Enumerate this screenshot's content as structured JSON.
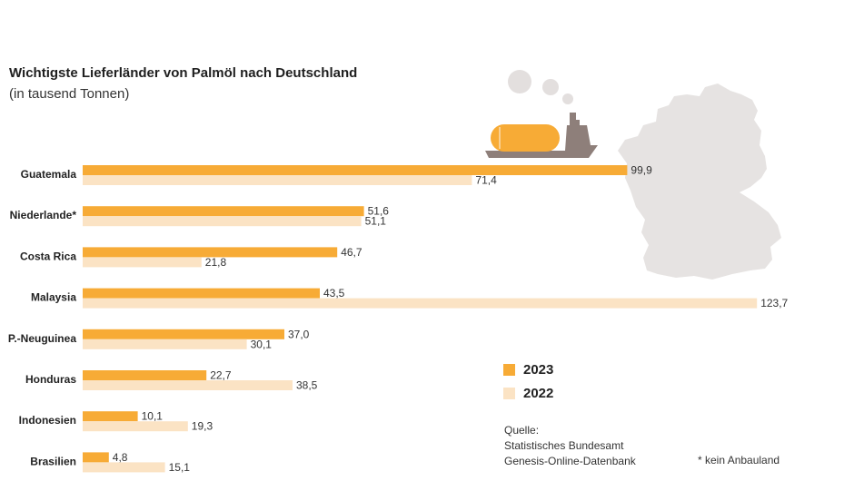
{
  "header": {
    "title": "Wichtigste Lieferländer von Palmöl nach Deutschland",
    "subtitle": "(in tausend Tonnen)"
  },
  "colors": {
    "series_2023": "#f7ab36",
    "series_2022": "#fbe3c4",
    "map": "#e6e3e2",
    "ship": "#8e7f7a",
    "smoke": "#e3dfde",
    "tank": "#f7ab36"
  },
  "chart_data": {
    "type": "bar",
    "orientation": "horizontal",
    "categories": [
      "Guatemala",
      "Niederlande*",
      "Costa Rica",
      "Malaysia",
      "P.-Neuguinea",
      "Honduras",
      "Indonesien",
      "Brasilien"
    ],
    "series": [
      {
        "name": "2023",
        "values": [
          99.9,
          51.6,
          46.7,
          43.5,
          37.0,
          22.7,
          10.1,
          4.8
        ],
        "labels": [
          "99,9",
          "51,6",
          "46,7",
          "43,5",
          "37,0",
          "22,7",
          "10,1",
          "4,8"
        ]
      },
      {
        "name": "2022",
        "values": [
          71.4,
          51.1,
          21.8,
          123.7,
          30.1,
          38.5,
          19.3,
          15.1
        ],
        "labels": [
          "71,4",
          "51,1",
          "21,8",
          "123,7",
          "30,1",
          "38,5",
          "19,3",
          "15,1"
        ]
      }
    ],
    "legend": [
      "2023",
      "2022"
    ],
    "legend_position": "right",
    "grid": false
  },
  "source": {
    "line1": "Quelle:",
    "line2": "Statistisches Bundesamt",
    "line3": "Genesis-Online-Datenbank"
  },
  "footnote": "* kein Anbauland"
}
